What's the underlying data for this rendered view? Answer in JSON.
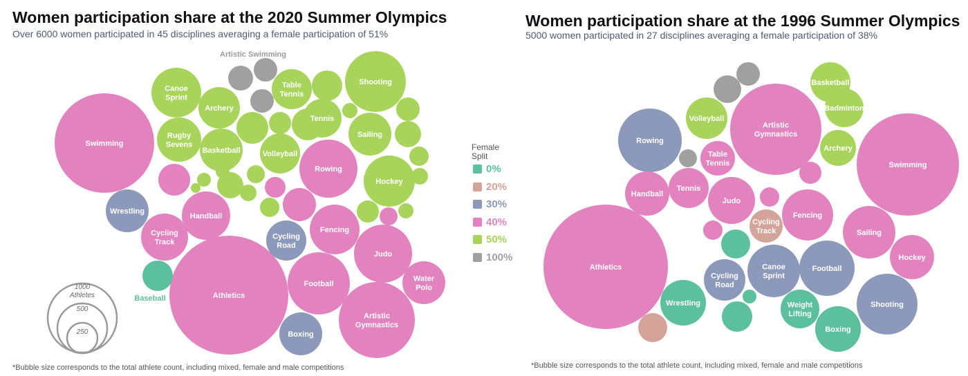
{
  "colors": {
    "0%": "#5cbf9d",
    "20%": "#d4a39a",
    "30%": "#8c99bb",
    "40%": "#e283bf",
    "50%": "#a8d45c",
    "100%": "#a0a0a0"
  },
  "legend": {
    "title_line1": "Female",
    "title_line2": "Split",
    "items": [
      {
        "label": "0%",
        "key": "0%"
      },
      {
        "label": "20%",
        "key": "20%"
      },
      {
        "label": "30%",
        "key": "30%"
      },
      {
        "label": "40%",
        "key": "40%"
      },
      {
        "label": "50%",
        "key": "50%"
      },
      {
        "label": "100%",
        "key": "100%"
      }
    ]
  },
  "size_legend": {
    "labels": [
      "1000",
      "Athletes",
      "500",
      "250"
    ]
  },
  "chart_data": [
    {
      "type": "bubble",
      "title": "Women participation share at the 2020 Summer Olympics",
      "subtitle": "Over 6000 women participated in 45 disciplines averaging a female participation of 51%",
      "note": "*Bubble size corresponds to the total athlete count, including mixed, female and male competitions",
      "annotations": [
        "Artistic Swimming",
        "Baseball"
      ],
      "bubbles": [
        {
          "label": "Swimming",
          "split": "40%"
        },
        {
          "label": "Athletics",
          "split": "40%"
        },
        {
          "label": "Wrestling",
          "split": "30%"
        },
        {
          "label": "Cycling Track",
          "split": "40%"
        },
        {
          "label": "Handball",
          "split": "40%"
        },
        {
          "label": "Canoe Sprint",
          "split": "50%"
        },
        {
          "label": "Archery",
          "split": "50%"
        },
        {
          "label": "Rugby Sevens",
          "split": "50%"
        },
        {
          "label": "Basketball",
          "split": "50%"
        },
        {
          "label": "Volleyball",
          "split": "50%"
        },
        {
          "label": "Table Tennis",
          "split": "50%"
        },
        {
          "label": "Tennis",
          "split": "50%"
        },
        {
          "label": "Shooting",
          "split": "50%"
        },
        {
          "label": "Sailing",
          "split": "50%"
        },
        {
          "label": "Hockey",
          "split": "50%"
        },
        {
          "label": "Rowing",
          "split": "40%"
        },
        {
          "label": "Fencing",
          "split": "40%"
        },
        {
          "label": "Judo",
          "split": "40%"
        },
        {
          "label": "Cycling Road",
          "split": "30%"
        },
        {
          "label": "Football",
          "split": "40%"
        },
        {
          "label": "Water Polo",
          "split": "40%"
        },
        {
          "label": "Artistic Gymnastics",
          "split": "40%"
        },
        {
          "label": "Boxing",
          "split": "30%"
        },
        {
          "label": "",
          "split": "0%"
        },
        {
          "label": "",
          "split": "100%"
        },
        {
          "label": "",
          "split": "100%"
        },
        {
          "label": "",
          "split": "100%"
        }
      ]
    },
    {
      "type": "bubble",
      "title": "Women participation share at the 1996 Summer Olympics",
      "subtitle": "5000 women participated in 27 disciplines averaging a female participation of 38%",
      "note": "*Bubble size corresponds to the total athlete count, including mixed, female and male competitions",
      "bubbles": [
        {
          "label": "Artistic Gymnastics",
          "split": "40%"
        },
        {
          "label": "Swimming",
          "split": "40%"
        },
        {
          "label": "Athletics",
          "split": "40%"
        },
        {
          "label": "Rowing",
          "split": "30%"
        },
        {
          "label": "Volleyball",
          "split": "50%"
        },
        {
          "label": "Basketball",
          "split": "50%"
        },
        {
          "label": "Badminton",
          "split": "50%"
        },
        {
          "label": "Archery",
          "split": "50%"
        },
        {
          "label": "Table Tennis",
          "split": "40%"
        },
        {
          "label": "Handball",
          "split": "40%"
        },
        {
          "label": "Tennis",
          "split": "40%"
        },
        {
          "label": "Judo",
          "split": "40%"
        },
        {
          "label": "Fencing",
          "split": "40%"
        },
        {
          "label": "Cycling Track",
          "split": "20%"
        },
        {
          "label": "Sailing",
          "split": "40%"
        },
        {
          "label": "Hockey",
          "split": "40%"
        },
        {
          "label": "Canoe Sprint",
          "split": "30%"
        },
        {
          "label": "Cycling Road",
          "split": "30%"
        },
        {
          "label": "Football",
          "split": "30%"
        },
        {
          "label": "Shooting",
          "split": "30%"
        },
        {
          "label": "Wrestling",
          "split": "0%"
        },
        {
          "label": "Weight Lifting",
          "split": "0%"
        },
        {
          "label": "Boxing",
          "split": "0%"
        },
        {
          "label": "",
          "split": "20%"
        },
        {
          "label": "",
          "split": "100%"
        },
        {
          "label": "",
          "split": "100%"
        }
      ]
    }
  ]
}
